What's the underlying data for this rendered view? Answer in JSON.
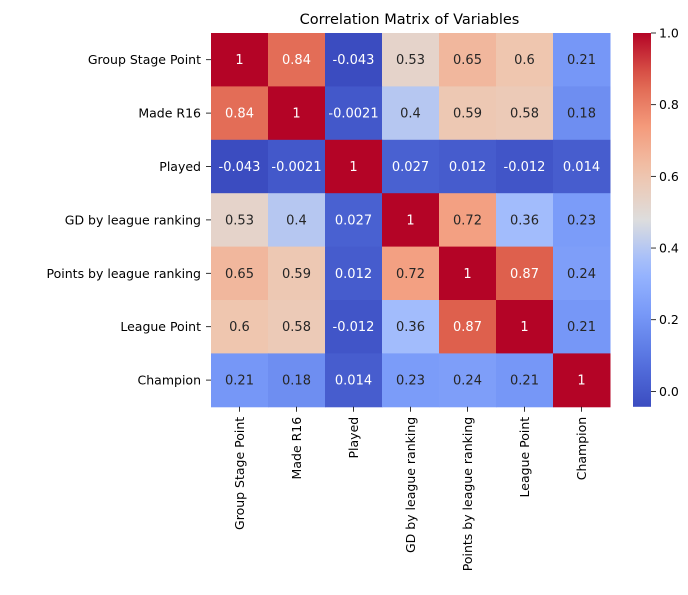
{
  "chart_data": {
    "type": "heatmap",
    "title": "Correlation Matrix of Variables",
    "xlabel": "",
    "ylabel": "",
    "rows": [
      "Group Stage Point",
      "Made R16",
      "Played",
      "GD by league ranking",
      "Points by league ranking",
      "League Point",
      "Champion"
    ],
    "columns": [
      "Group Stage Point",
      "Made R16",
      "Played",
      "GD by league ranking",
      "Points by league ranking",
      "League Point",
      "Champion"
    ],
    "values": [
      [
        1,
        0.84,
        -0.043,
        0.53,
        0.65,
        0.6,
        0.21
      ],
      [
        0.84,
        1,
        -0.0021,
        0.4,
        0.59,
        0.58,
        0.18
      ],
      [
        -0.043,
        -0.0021,
        1,
        0.027,
        0.012,
        -0.012,
        0.014
      ],
      [
        0.53,
        0.4,
        0.027,
        1,
        0.72,
        0.36,
        0.23
      ],
      [
        0.65,
        0.59,
        0.012,
        0.72,
        1,
        0.87,
        0.24
      ],
      [
        0.6,
        0.58,
        -0.012,
        0.36,
        0.87,
        1,
        0.21
      ],
      [
        0.21,
        0.18,
        0.014,
        0.23,
        0.24,
        0.21,
        1
      ]
    ],
    "annotations": [
      [
        "1",
        "0.84",
        "-0.043",
        "0.53",
        "0.65",
        "0.6",
        "0.21"
      ],
      [
        "0.84",
        "1",
        "-0.0021",
        "0.4",
        "0.59",
        "0.58",
        "0.18"
      ],
      [
        "-0.043",
        "-0.0021",
        "1",
        "0.027",
        "0.012",
        "-0.012",
        "0.014"
      ],
      [
        "0.53",
        "0.4",
        "0.027",
        "1",
        "0.72",
        "0.36",
        "0.23"
      ],
      [
        "0.65",
        "0.59",
        "0.012",
        "0.72",
        "1",
        "0.87",
        "0.24"
      ],
      [
        "0.6",
        "0.58",
        "-0.012",
        "0.36",
        "0.87",
        "1",
        "0.21"
      ],
      [
        "0.21",
        "0.18",
        "0.014",
        "0.23",
        "0.24",
        "0.21",
        "1"
      ]
    ],
    "colormap": "coolwarm",
    "colorbar": {
      "min": -0.043,
      "max": 1,
      "ticks": [
        0.0,
        0.2,
        0.4,
        0.6,
        0.8,
        1.0
      ],
      "tick_labels": [
        "0.0",
        "0.2",
        "0.4",
        "0.6",
        "0.8",
        "1.0"
      ],
      "placement": "right"
    }
  }
}
